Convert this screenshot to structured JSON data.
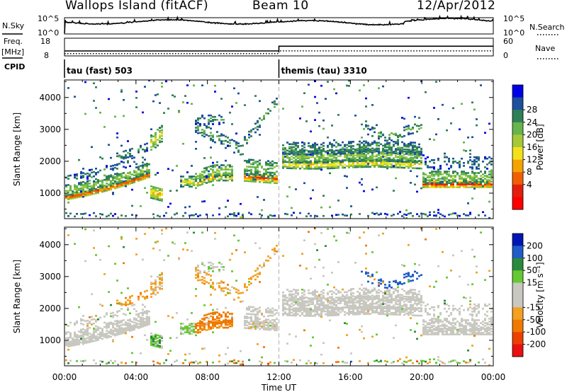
{
  "header": {
    "station": "Wallops Island (fitACF)",
    "beam": "Beam 10",
    "date": "12/Apr/2012"
  },
  "chart_data": [
    {
      "type": "line",
      "panel": "noise",
      "left_label": "N.Sky",
      "right_label": "N.Search",
      "left_ticks": [
        "10^5",
        "10^0"
      ],
      "right_ticks": [
        "10^5",
        "10^0"
      ],
      "y_log": true,
      "series": [
        {
          "name": "N.Sky",
          "style": "solid"
        },
        {
          "name": "N.Search",
          "style": "dotted"
        }
      ]
    },
    {
      "type": "line",
      "panel": "frequency",
      "left_label": "Freq.",
      "left_unit": "[MHz]",
      "right_label": "Nave",
      "left_ticks": [
        "18",
        "8"
      ],
      "right_ticks": [
        "60",
        "0"
      ],
      "series": [
        {
          "name": "Freq.",
          "style": "solid",
          "x": [
            0,
            12,
            12,
            24
          ],
          "values": [
            10.8,
            10.8,
            13.5,
            13.5
          ]
        },
        {
          "name": "Nave",
          "style": "dotted",
          "x": [
            0,
            12,
            12,
            24
          ],
          "values": [
            8,
            8,
            17,
            17
          ]
        }
      ]
    },
    {
      "type": "table",
      "panel": "cpid",
      "label": "CPID",
      "segments": [
        {
          "start": 0,
          "end": 12,
          "name": "tau (fast) 503"
        },
        {
          "start": 12,
          "end": 24,
          "name": "themis (tau) 3310"
        }
      ]
    },
    {
      "type": "heatmap",
      "panel": "power",
      "ylabel": "Slant Range [km]",
      "xlim": [
        0,
        24
      ],
      "ylim": [
        200,
        4550
      ],
      "yticks": [
        "1000",
        "2000",
        "3000",
        "4000"
      ],
      "colorbar": {
        "label": "Power [dB]",
        "ticks": [
          "28",
          "24",
          "20",
          "16",
          "12",
          "8",
          "4"
        ],
        "colors": [
          "#0000e6",
          "#1d4f9e",
          "#2f7f57",
          "#66b44d",
          "#a6c937",
          "#f2e11a",
          "#f5a300",
          "#f25f00",
          "#e41e0d",
          "#ff0000"
        ]
      }
    },
    {
      "type": "heatmap",
      "panel": "velocity",
      "ylabel": "Slant Range [km]",
      "xlim": [
        0,
        24
      ],
      "ylim": [
        200,
        4550
      ],
      "yticks": [
        "1000",
        "2000",
        "3000",
        "4000"
      ],
      "xticks": [
        "00:00",
        "04:00",
        "08:00",
        "12:00",
        "16:00",
        "20:00",
        "00:00"
      ],
      "xlabel": "Time UT",
      "colorbar": {
        "label": "Velocity [m s⁻¹]",
        "ticks": [
          "200",
          "100",
          "50",
          "15",
          "-15",
          "-50",
          "-100",
          "-200"
        ],
        "colors": [
          "#0016b4",
          "#1f5cc8",
          "#2a8a3c",
          "#66c832",
          "#c8c8c0",
          "#c8c8c0",
          "#f4a020",
          "#f07800",
          "#ec4000",
          "#e81010"
        ]
      }
    }
  ]
}
